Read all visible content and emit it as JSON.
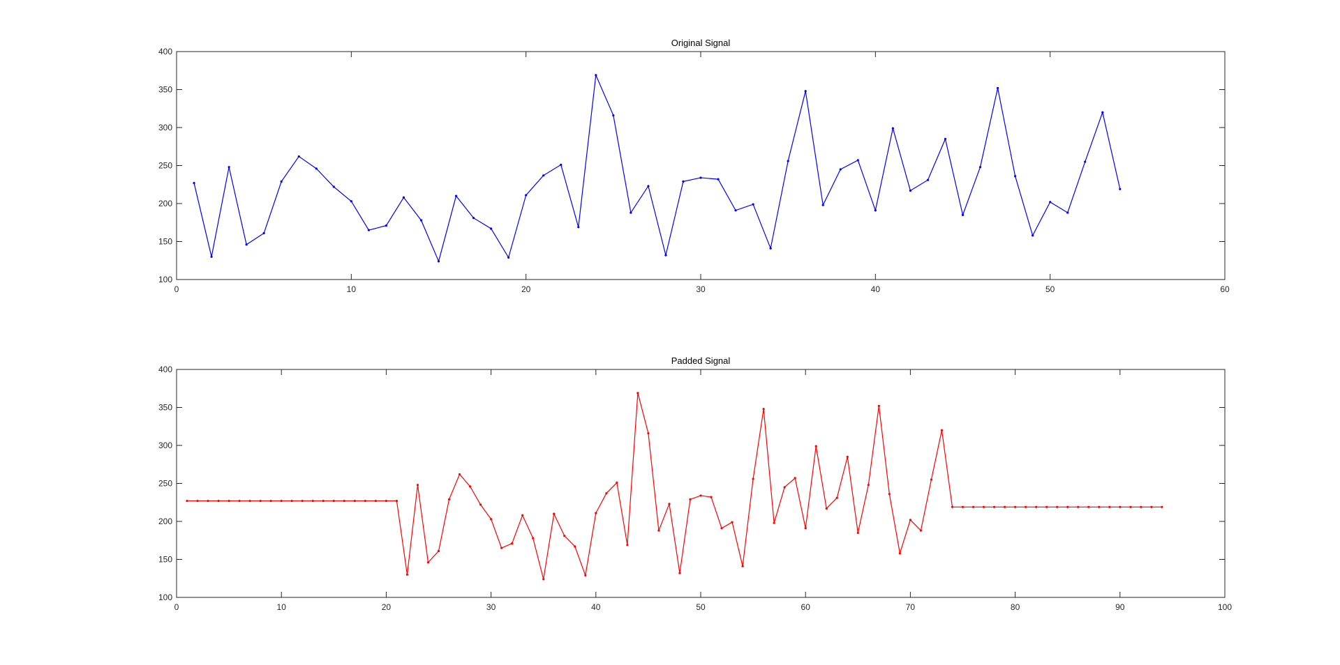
{
  "chart_data": [
    {
      "type": "line",
      "title": "Original Signal",
      "xlabel": "",
      "ylabel": "",
      "xlim": [
        0,
        60
      ],
      "ylim": [
        100,
        400
      ],
      "xticks": [
        0,
        10,
        20,
        30,
        40,
        50,
        60
      ],
      "yticks": [
        100,
        150,
        200,
        250,
        300,
        350,
        400
      ],
      "grid": false,
      "series": [
        {
          "color": "#0000ff",
          "marker": "dot",
          "x_start": 1,
          "values": [
            227,
            130,
            248,
            146,
            161,
            229,
            262,
            246,
            222,
            203,
            165,
            171,
            208,
            178,
            124,
            210,
            181,
            167,
            129,
            211,
            237,
            251,
            169,
            369,
            316,
            188,
            223,
            132,
            229,
            234,
            232,
            191,
            199,
            141,
            256,
            348,
            198,
            245,
            257,
            191,
            299,
            217,
            231,
            285,
            185,
            248,
            352,
            236,
            158,
            202,
            188,
            255,
            320,
            219
          ]
        }
      ]
    },
    {
      "type": "line",
      "title": "Padded Signal",
      "xlabel": "",
      "ylabel": "",
      "xlim": [
        0,
        100
      ],
      "ylim": [
        100,
        400
      ],
      "xticks": [
        0,
        10,
        20,
        30,
        40,
        50,
        60,
        70,
        80,
        90,
        100
      ],
      "yticks": [
        100,
        150,
        200,
        250,
        300,
        350,
        400
      ],
      "grid": false,
      "series": [
        {
          "color": "#ff0000",
          "marker": "dot",
          "x_start": 1,
          "values": [
            227,
            227,
            227,
            227,
            227,
            227,
            227,
            227,
            227,
            227,
            227,
            227,
            227,
            227,
            227,
            227,
            227,
            227,
            227,
            227,
            227,
            130,
            248,
            146,
            161,
            229,
            262,
            246,
            222,
            203,
            165,
            171,
            208,
            178,
            124,
            210,
            181,
            167,
            129,
            211,
            237,
            251,
            169,
            369,
            316,
            188,
            223,
            132,
            229,
            234,
            232,
            191,
            199,
            141,
            256,
            348,
            198,
            245,
            257,
            191,
            299,
            217,
            231,
            285,
            185,
            248,
            352,
            236,
            158,
            202,
            188,
            255,
            320,
            219,
            219,
            219,
            219,
            219,
            219,
            219,
            219,
            219,
            219,
            219,
            219,
            219,
            219,
            219,
            219,
            219,
            219,
            219,
            219,
            219
          ]
        }
      ]
    }
  ]
}
